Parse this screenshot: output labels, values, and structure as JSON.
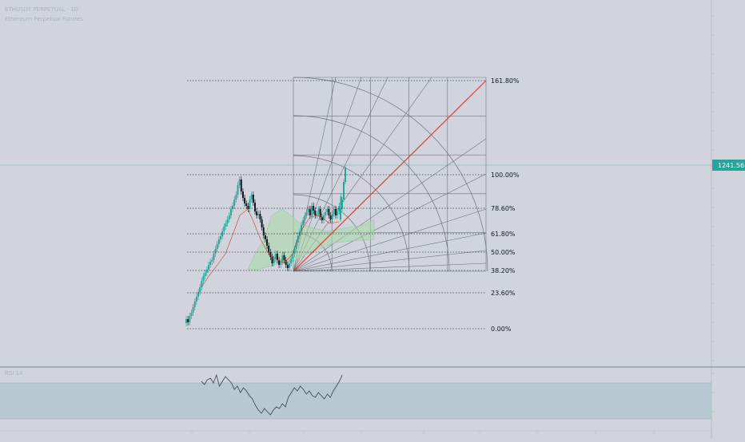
{
  "header": {
    "symbol_line": "ETHUSDT PERPETUAL · 1D",
    "sub_line": "Ethereum Perpetual Futures"
  },
  "last_price": {
    "label": "1241.56",
    "color": "#26a69a"
  },
  "fib_levels": [
    "161.80%",
    "100.00%",
    "78.60%",
    "61.80%",
    "50.00%",
    "38.20%",
    "23.60%",
    "0.00%"
  ],
  "colors": {
    "background": "#d1d4dc",
    "up_candle": "#26a69a",
    "down_candle": "#131722",
    "trend_line": "#e53935",
    "grid_line": "#787b86",
    "rsi_band": "#b7c9d0",
    "ichimoku_cloud": "#a6d8a8",
    "price_line": "#4fa8a0"
  },
  "indicators": {
    "lower_pane": "RSI 14",
    "overlay": "Ichimoku Cloud"
  },
  "icons": [
    "fib-speed-resistance-fan",
    "trend-line",
    "price-scale"
  ]
}
